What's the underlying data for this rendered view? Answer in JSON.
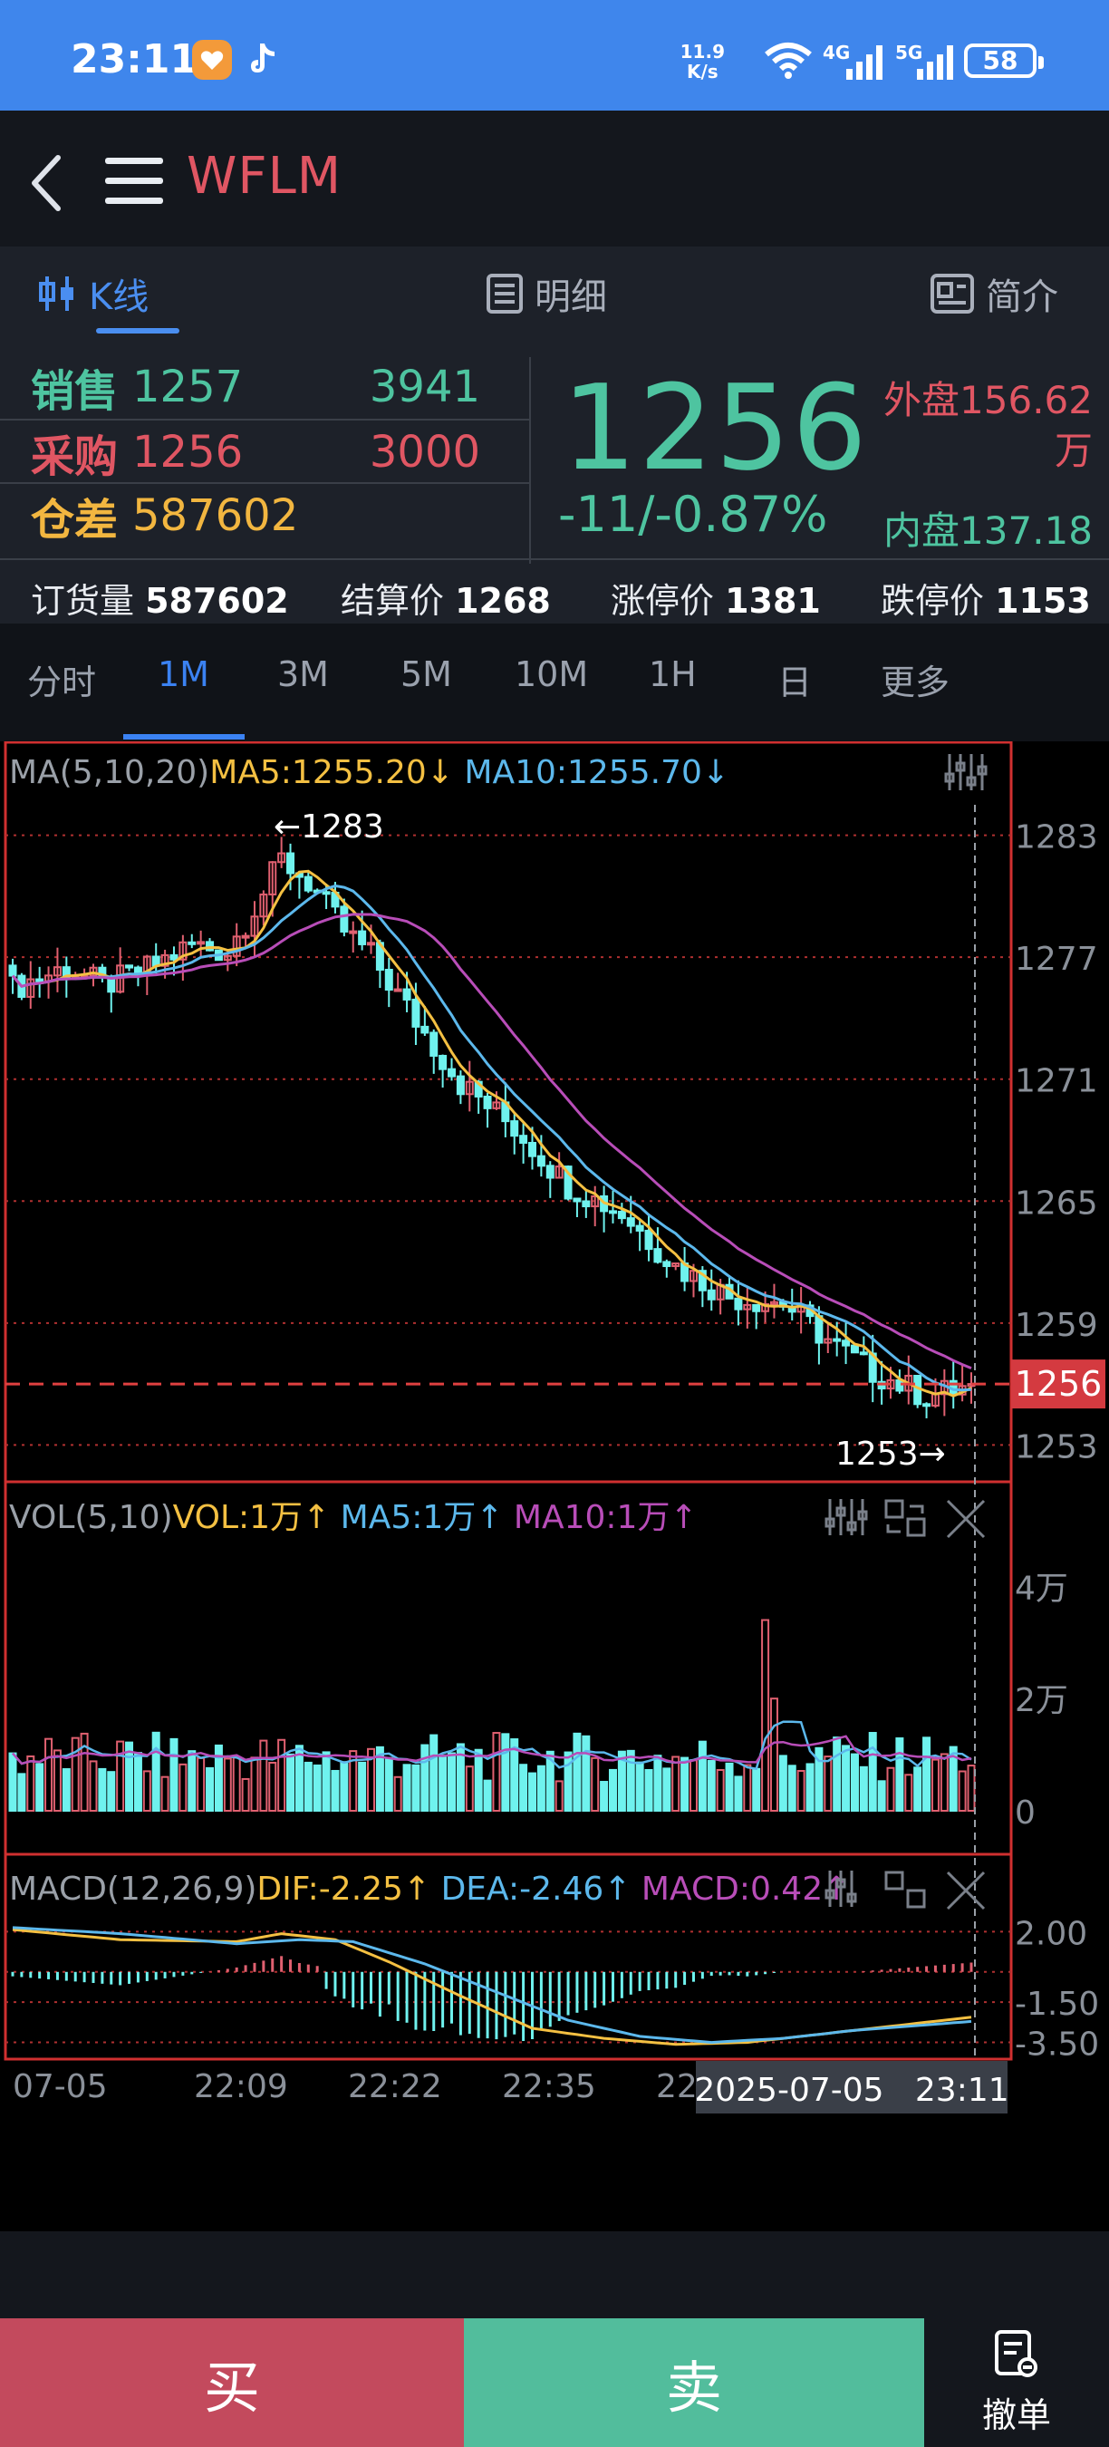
{
  "status_bar": {
    "time": "23:11",
    "net_speed_value": "11.9",
    "net_speed_unit": "K/s",
    "network_4g": "4G",
    "network_5g": "5G",
    "battery": "58"
  },
  "header": {
    "symbol": "WFLM",
    "back_icon": "chevron-left-icon",
    "menu_icon": "menu-icon"
  },
  "tabs": [
    {
      "label": "K线",
      "icon": "candlestick-icon",
      "active": true
    },
    {
      "label": "明细",
      "icon": "list-icon",
      "active": false
    },
    {
      "label": "简介",
      "icon": "profile-card-icon",
      "active": false
    }
  ],
  "quote": {
    "sell": {
      "label": "销售",
      "price": "1257",
      "volume": "3941"
    },
    "buy": {
      "label": "采购",
      "price": "1256",
      "volume": "3000"
    },
    "spread": {
      "label": "仓差",
      "value": "587602"
    },
    "last_price": "1256",
    "change": "-11/-0.87%",
    "outer_disk_label": "外盘",
    "outer_disk_value": "156.62",
    "outer_disk_unit": "万",
    "inner_disk_label": "内盘",
    "inner_disk_value": "137.18",
    "inner_disk_unit": "万",
    "colors": {
      "up": "#e05663",
      "down": "#4ec4a0",
      "spread": "#f2b640"
    }
  },
  "info_row": [
    {
      "label": "订货量",
      "value": "587602"
    },
    {
      "label": "结算价",
      "value": "1268"
    },
    {
      "label": "涨停价",
      "value": "1381"
    },
    {
      "label": "跌停价",
      "value": "1153"
    }
  ],
  "periods": [
    {
      "label": "分时",
      "active": false
    },
    {
      "label": "1M",
      "active": true
    },
    {
      "label": "3M",
      "active": false
    },
    {
      "label": "5M",
      "active": false
    },
    {
      "label": "10M",
      "active": false
    },
    {
      "label": "1H",
      "active": false
    },
    {
      "label": "日",
      "active": false
    },
    {
      "label": "更多",
      "active": false
    }
  ],
  "chart_data": {
    "type": "candlestick",
    "ma_legend": {
      "prefix": "MA(5,10,20)",
      "ma5": "MA5:1255.20",
      "ma10": "MA10:1255.70"
    },
    "y_ticks": [
      "1283",
      "1277",
      "1271",
      "1265",
      "1259",
      "1253"
    ],
    "y_tick_values": [
      1283,
      1277,
      1271,
      1265,
      1259,
      1253
    ],
    "current_price_tag": "1256",
    "current_price": 1256,
    "high_label": "←1283",
    "low_label": "1253→",
    "ylim": [
      1251.5,
      1284.5
    ],
    "price_path": [
      [
        0,
        1275.5
      ],
      [
        6,
        1276.5
      ],
      [
        10,
        1275.6
      ],
      [
        14,
        1276.2
      ],
      [
        20,
        1277.6
      ],
      [
        24,
        1277.3
      ],
      [
        28,
        1280.2
      ],
      [
        30,
        1281.8
      ],
      [
        33,
        1280.7
      ],
      [
        37,
        1278.3
      ],
      [
        40,
        1277.1
      ],
      [
        44,
        1274.5
      ],
      [
        50,
        1270.8
      ],
      [
        56,
        1268.6
      ],
      [
        62,
        1265.8
      ],
      [
        68,
        1264.4
      ],
      [
        74,
        1261.8
      ],
      [
        80,
        1260.3
      ],
      [
        86,
        1260.0
      ],
      [
        92,
        1257.8
      ],
      [
        96,
        1256.6
      ],
      [
        102,
        1255.4
      ],
      [
        107,
        1255.9
      ]
    ],
    "volume": {
      "legend": {
        "prefix": "VOL(5,10)",
        "vol": "VOL:1万",
        "ma5": "MA5:1万",
        "ma10": "MA10:1万"
      },
      "y_ticks": [
        "4万",
        "2万",
        "0"
      ],
      "ylim": [
        0,
        4.2
      ],
      "spike_index": 84,
      "spike_value": 3.4
    },
    "macd": {
      "legend": {
        "prefix": "MACD(12,26,9)",
        "dif": "DIF:-2.25",
        "dea": "DEA:-2.46",
        "macd": "MACD:0.42"
      },
      "y_ticks": [
        "2.00",
        "-1.50",
        "-3.50"
      ],
      "ylim": [
        -3.7,
        2.6
      ],
      "dif_path": [
        [
          0,
          2.1
        ],
        [
          12,
          1.6
        ],
        [
          25,
          1.5
        ],
        [
          30,
          1.9
        ],
        [
          36,
          1.6
        ],
        [
          42,
          0.5
        ],
        [
          50,
          -1.2
        ],
        [
          58,
          -2.8
        ],
        [
          66,
          -3.3
        ],
        [
          74,
          -3.6
        ],
        [
          82,
          -3.5
        ],
        [
          90,
          -3.1
        ],
        [
          98,
          -2.7
        ],
        [
          107,
          -2.25
        ]
      ],
      "dea_path": [
        [
          0,
          2.2
        ],
        [
          12,
          1.9
        ],
        [
          25,
          1.4
        ],
        [
          32,
          1.6
        ],
        [
          38,
          1.5
        ],
        [
          46,
          0.4
        ],
        [
          54,
          -1.0
        ],
        [
          62,
          -2.4
        ],
        [
          70,
          -3.2
        ],
        [
          78,
          -3.5
        ],
        [
          86,
          -3.3
        ],
        [
          94,
          -2.9
        ],
        [
          107,
          -2.46
        ]
      ]
    },
    "x_labels": [
      "07-05",
      "22:09",
      "22:22",
      "22:35",
      "22:"
    ],
    "crosshair_label": "2025-07-05   23:11",
    "colors": {
      "up": "#e06070",
      "down": "#6ff2ee",
      "ma5": "#f4c042",
      "ma10": "#5cb8ec",
      "ma20": "#b84db8",
      "grid": "#b03030",
      "border": "#d03030",
      "tag_bg": "#d43a40"
    }
  },
  "bottom": {
    "buy": "买",
    "sell": "卖",
    "cancel": "撤单",
    "cancel_icon": "document-cancel-icon"
  }
}
